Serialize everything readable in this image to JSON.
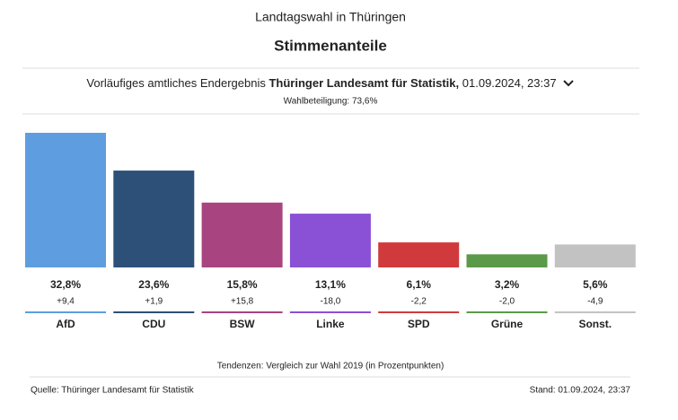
{
  "header": {
    "title": "Landtagswahl in Thüringen",
    "subtitle": "Stimmenanteile",
    "status_prefix": "Vorläufiges amtliches Endergebnis",
    "status_source": "Thüringer Landesamt für Statistik,",
    "status_time": "01.09.2024, 23:37",
    "turnout": "Wahlbeteiligung: 73,6%"
  },
  "chart_data": {
    "type": "bar",
    "categories": [
      "AfD",
      "CDU",
      "BSW",
      "Linke",
      "SPD",
      "Grüne",
      "Sonst."
    ],
    "values": [
      32.8,
      23.6,
      15.8,
      13.1,
      6.1,
      3.2,
      5.6
    ],
    "value_labels": [
      "32,8%",
      "23,6%",
      "15,8%",
      "13,1%",
      "6,1%",
      "3,2%",
      "5,6%"
    ],
    "colors": [
      "#5e9de0",
      "#2c5078",
      "#a8447f",
      "#8a50d6",
      "#d03a3c",
      "#5a9a49",
      "#c2c2c2"
    ],
    "changes": {
      "values": [
        9.4,
        1.9,
        15.8,
        -18.0,
        -2.2,
        -2.0,
        -4.9
      ],
      "value_labels": [
        "+9,4",
        "+1,9",
        "+15,8",
        "-18,0",
        "-2,2",
        "-2,0",
        "-4,9"
      ]
    },
    "note": "Tendenzen: Vergleich zur Wahl 2019 (in Prozentpunkten)"
  },
  "footer": {
    "source": "Quelle: Thüringer Landesamt für Statistik",
    "date": "Stand: 01.09.2024, 23:37"
  }
}
